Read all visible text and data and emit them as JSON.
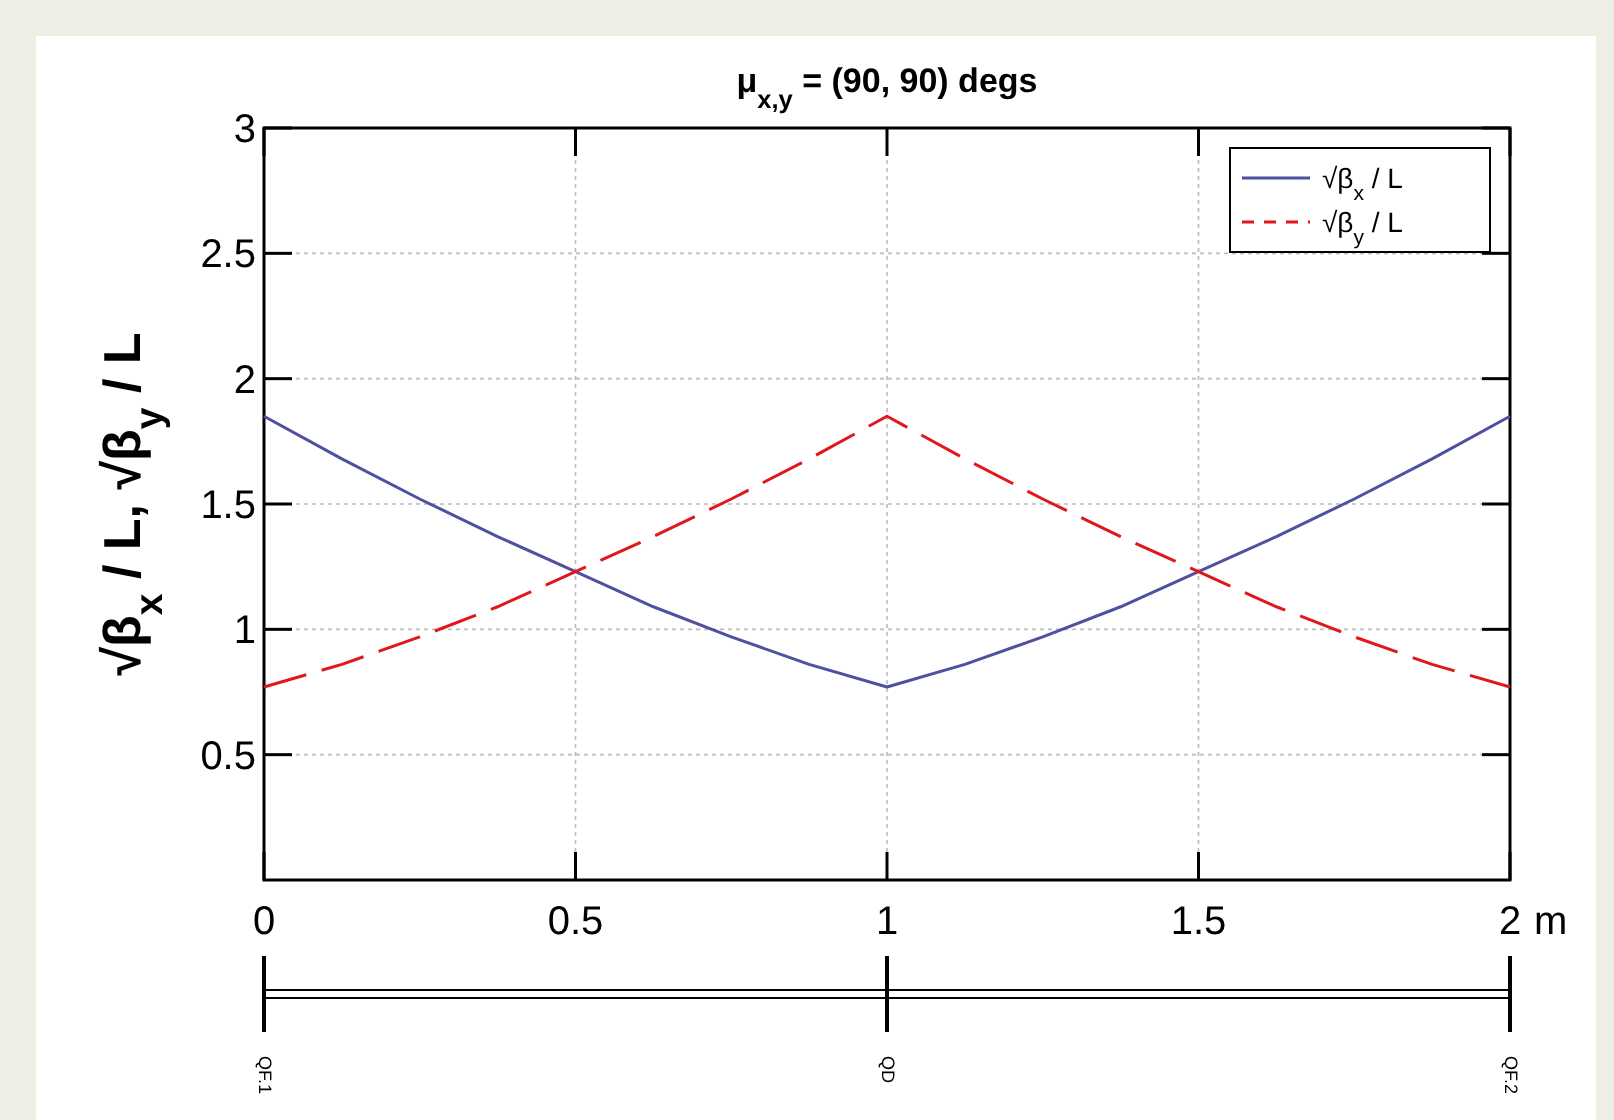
{
  "chart_data": {
    "type": "line",
    "title": "μ$_{x,y}$ = (90, 90) degs",
    "xlabel": "m",
    "ylabel": "√β$_{x}$ / L, √β$_{y}$ / L",
    "x": [
      0,
      0.125,
      0.25,
      0.375,
      0.5,
      0.625,
      0.75,
      0.875,
      1,
      1.125,
      1.25,
      1.375,
      1.5,
      1.625,
      1.75,
      1.875,
      2
    ],
    "series": [
      {
        "name": "√β$_{x}$ / L",
        "color": "#5050a0",
        "line_style": "solid",
        "values": [
          1.85,
          1.68,
          1.52,
          1.37,
          1.23,
          1.09,
          0.97,
          0.86,
          0.77,
          0.86,
          0.97,
          1.09,
          1.23,
          1.37,
          1.52,
          1.68,
          1.85
        ]
      },
      {
        "name": "√β$_{y}$ / L",
        "color": "#e0181c",
        "line_style": "dashed",
        "values": [
          0.77,
          0.86,
          0.97,
          1.09,
          1.23,
          1.37,
          1.52,
          1.68,
          1.85,
          1.68,
          1.52,
          1.37,
          1.23,
          1.09,
          0.97,
          0.86,
          0.77
        ]
      }
    ],
    "xlim": [
      0,
      2
    ],
    "xticks": [
      0,
      0.5,
      1,
      1.5,
      2
    ],
    "ylim": [
      0,
      3
    ],
    "yticks": [
      0.5,
      1,
      1.5,
      2,
      2.5,
      3
    ],
    "grid": true,
    "legend": "top right",
    "annotations": [
      "QF.1",
      "QD",
      "QF.2"
    ]
  }
}
